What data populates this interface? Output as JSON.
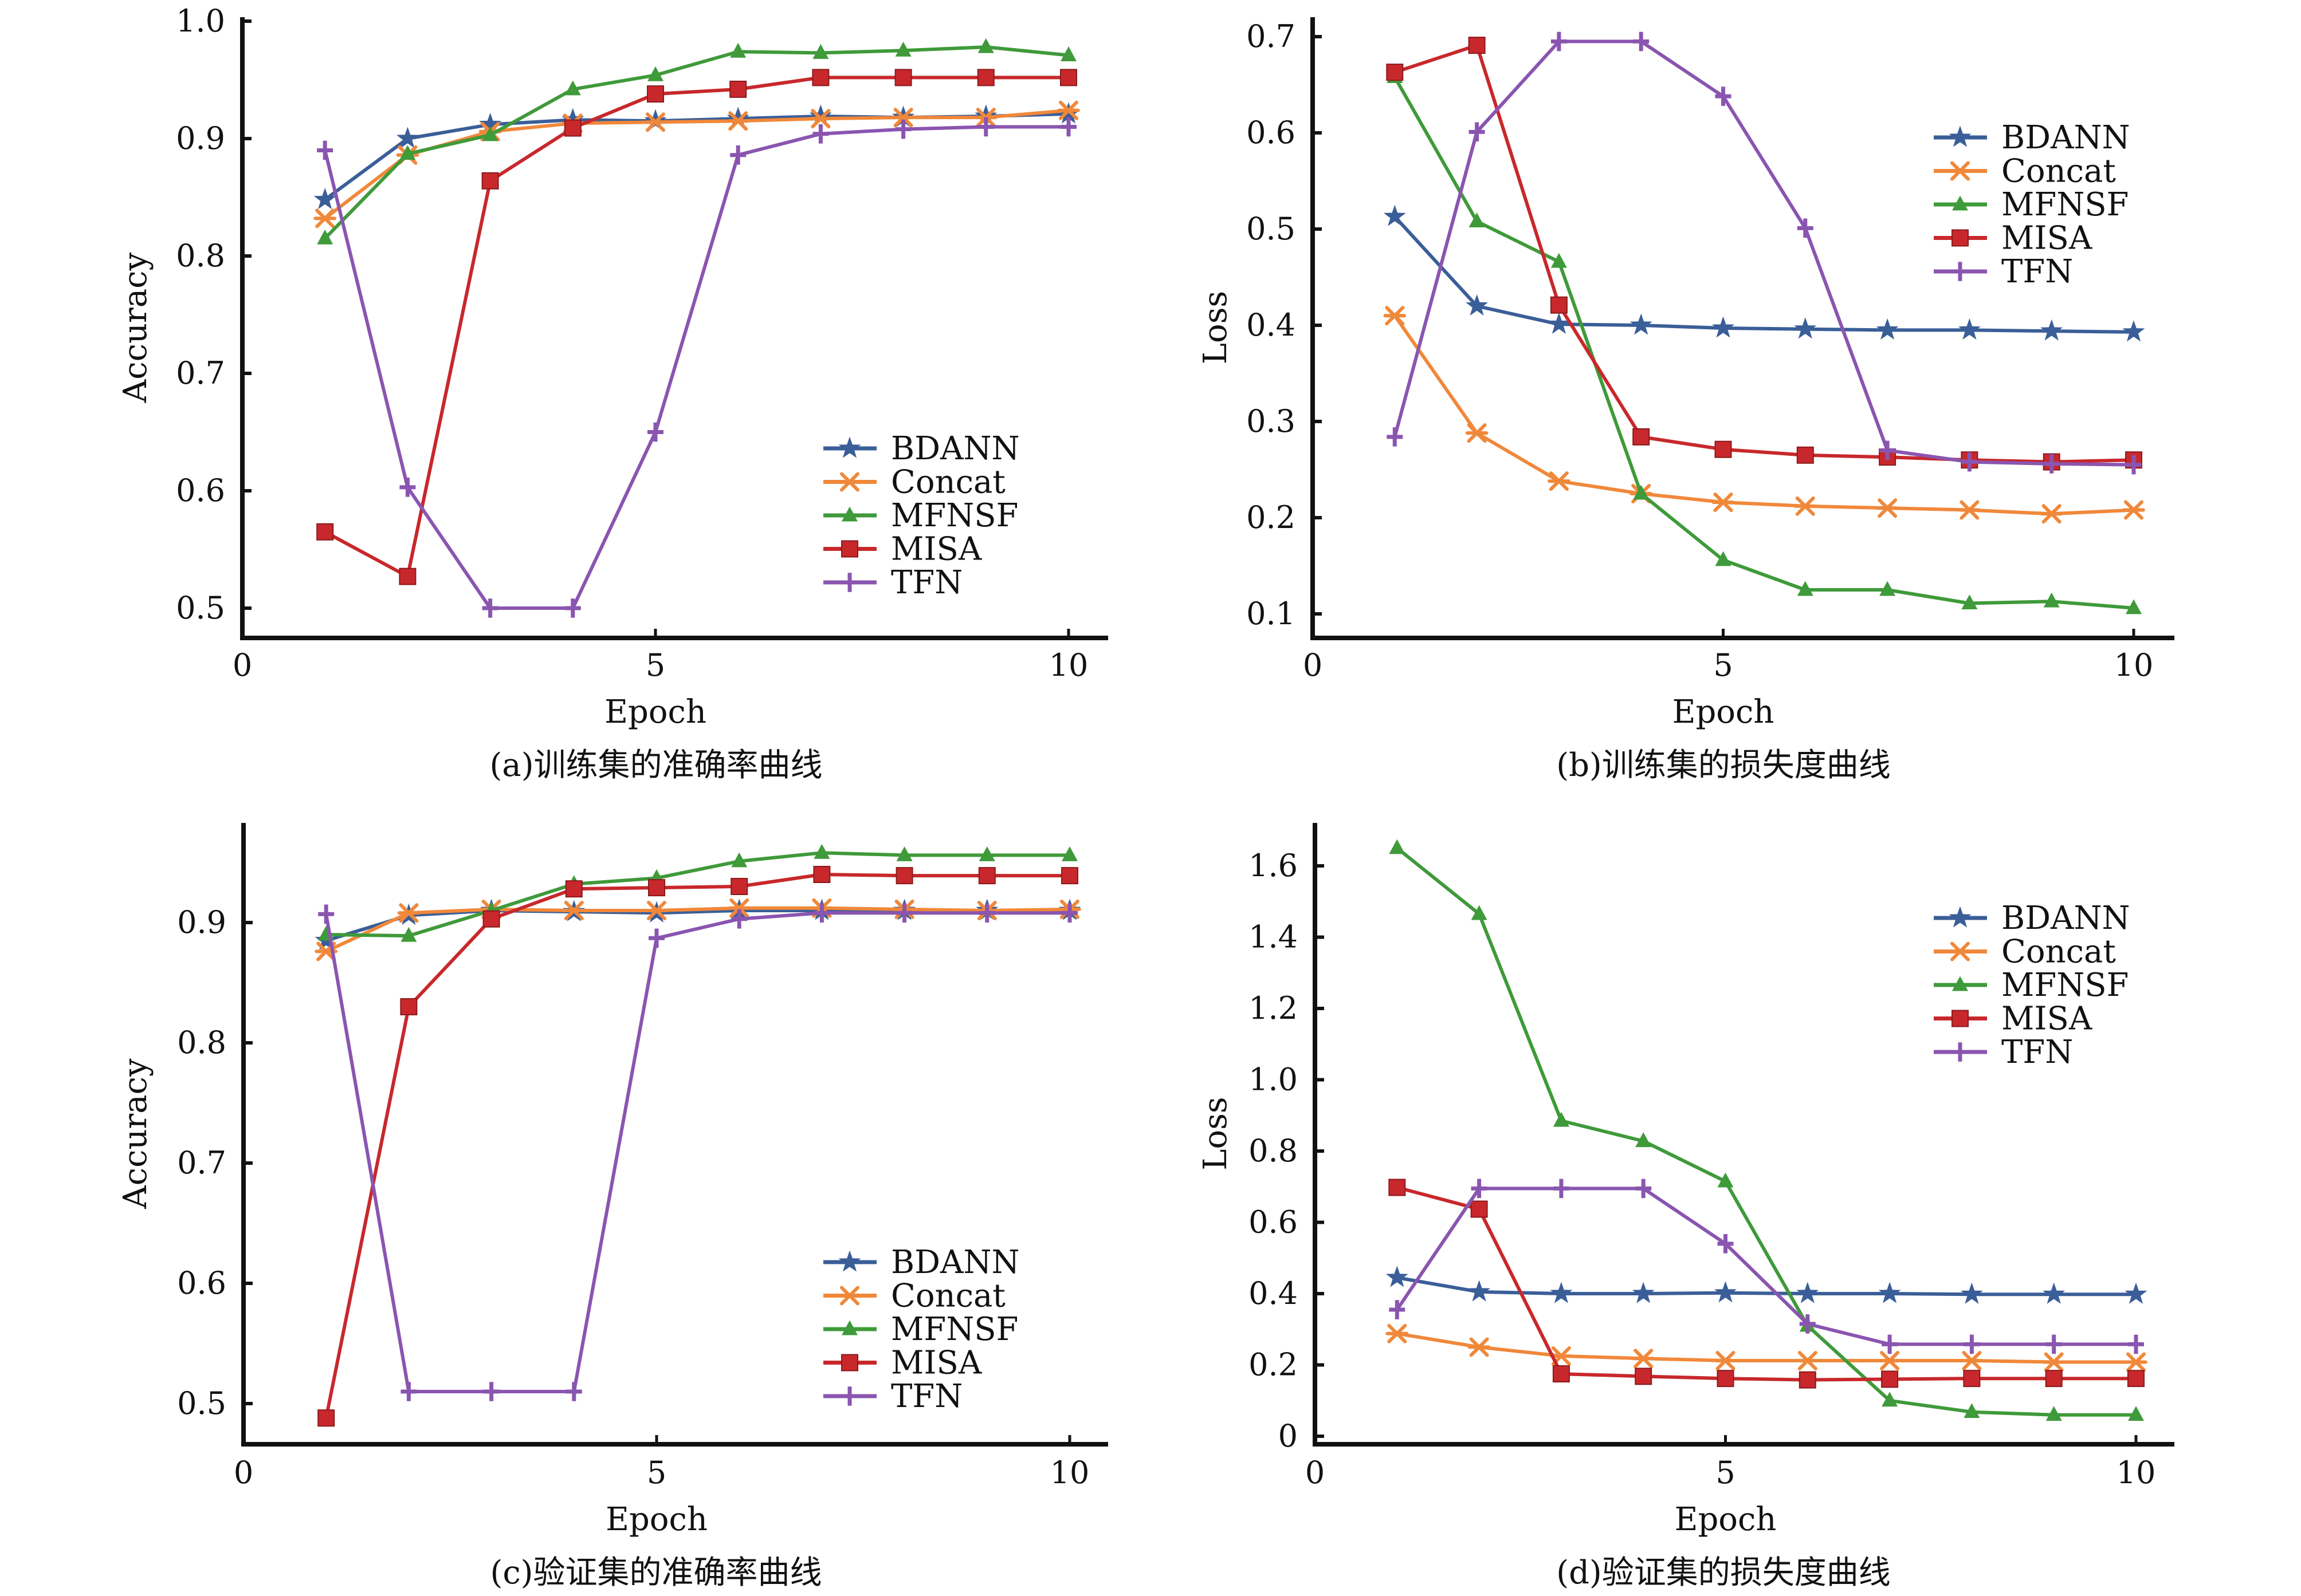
{
  "figure": {
    "series_styles": [
      {
        "name": "BDANN",
        "color": "#3a5e98",
        "marker": "star"
      },
      {
        "name": "Concat",
        "color": "#f0883a",
        "marker": "x"
      },
      {
        "name": "MFNSF",
        "color": "#3f9a3a",
        "marker": "triangle"
      },
      {
        "name": "MISA",
        "color": "#c8282c",
        "marker": "square"
      },
      {
        "name": "TFN",
        "color": "#8a55b0",
        "marker": "plus"
      }
    ]
  },
  "chart_data": [
    {
      "id": "a",
      "type": "line",
      "title": "(a)训练集的准确率曲线",
      "xlabel": "Epoch",
      "ylabel": "Accuracy",
      "xlim": [
        0,
        10.5
      ],
      "ylim": [
        0.47,
        1.0
      ],
      "xticks": [
        0,
        5,
        10
      ],
      "xtick_labels": [
        "0",
        "5",
        "10"
      ],
      "yticks": [
        0.5,
        0.6,
        0.7,
        0.8,
        0.9,
        1.0
      ],
      "ytick_labels": [
        "0.5",
        "0.6",
        "0.7",
        "0.8",
        "0.9",
        "1.0"
      ],
      "legend_position": "lower-right",
      "grid": false,
      "x": [
        1,
        2,
        3,
        4,
        5,
        6,
        7,
        8,
        9,
        10
      ],
      "series": [
        {
          "name": "BDANN",
          "values": [
            0.848,
            0.9,
            0.912,
            0.916,
            0.915,
            0.917,
            0.919,
            0.918,
            0.919,
            0.921
          ]
        },
        {
          "name": "Concat",
          "values": [
            0.832,
            0.886,
            0.906,
            0.913,
            0.914,
            0.915,
            0.917,
            0.918,
            0.918,
            0.924
          ]
        },
        {
          "name": "MFNSF",
          "values": [
            0.815,
            0.887,
            0.903,
            0.942,
            0.954,
            0.974,
            0.973,
            0.975,
            0.978,
            0.971
          ]
        },
        {
          "name": "MISA",
          "values": [
            0.565,
            0.527,
            0.864,
            0.909,
            0.938,
            0.942,
            0.952,
            0.952,
            0.952,
            0.952
          ]
        },
        {
          "name": "TFN",
          "values": [
            0.89,
            0.603,
            0.5,
            0.5,
            0.65,
            0.886,
            0.904,
            0.908,
            0.91,
            0.91
          ]
        }
      ]
    },
    {
      "id": "b",
      "type": "line",
      "title": "(b)训练集的损失度曲线",
      "xlabel": "Epoch",
      "ylabel": "Loss",
      "xlim": [
        0,
        10.5
      ],
      "ylim": [
        0.075,
        0.72
      ],
      "xticks": [
        0,
        5,
        10
      ],
      "xtick_labels": [
        "0",
        "5",
        "10"
      ],
      "yticks": [
        0.1,
        0.2,
        0.3,
        0.4,
        0.5,
        0.6,
        0.7
      ],
      "ytick_labels": [
        "0.1",
        "0.2",
        "0.3",
        "0.4",
        "0.5",
        "0.6",
        "0.7"
      ],
      "legend_position": "upper-right",
      "grid": false,
      "x": [
        1,
        2,
        3,
        4,
        5,
        6,
        7,
        8,
        9,
        10
      ],
      "series": [
        {
          "name": "BDANN",
          "values": [
            0.513,
            0.42,
            0.401,
            0.4,
            0.397,
            0.396,
            0.395,
            0.395,
            0.394,
            0.393
          ]
        },
        {
          "name": "Concat",
          "values": [
            0.41,
            0.288,
            0.238,
            0.225,
            0.216,
            0.212,
            0.21,
            0.208,
            0.204,
            0.208
          ]
        },
        {
          "name": "MFNSF",
          "values": [
            0.658,
            0.508,
            0.466,
            0.225,
            0.156,
            0.125,
            0.125,
            0.111,
            0.113,
            0.106
          ]
        },
        {
          "name": "MISA",
          "values": [
            0.663,
            0.691,
            0.421,
            0.284,
            0.271,
            0.265,
            0.263,
            0.26,
            0.258,
            0.26
          ]
        },
        {
          "name": "TFN",
          "values": [
            0.284,
            0.601,
            0.695,
            0.695,
            0.638,
            0.501,
            0.27,
            0.258,
            0.256,
            0.255
          ]
        }
      ]
    },
    {
      "id": "c",
      "type": "line",
      "title": "(c)验证集的准确率曲线",
      "xlabel": "Epoch",
      "ylabel": "Accuracy",
      "xlim": [
        0,
        10.5
      ],
      "ylim": [
        0.47,
        0.98
      ],
      "xticks": [
        0,
        5,
        10
      ],
      "xtick_labels": [
        "0",
        "5",
        "10"
      ],
      "yticks": [
        0.5,
        0.6,
        0.7,
        0.8,
        0.9
      ],
      "ytick_labels": [
        "0.5",
        "0.6",
        "0.7",
        "0.8",
        "0.9"
      ],
      "legend_position": "lower-right",
      "grid": false,
      "x": [
        1,
        2,
        3,
        4,
        5,
        6,
        7,
        8,
        9,
        10
      ],
      "series": [
        {
          "name": "BDANN",
          "values": [
            0.885,
            0.906,
            0.91,
            0.909,
            0.908,
            0.91,
            0.91,
            0.91,
            0.91,
            0.91
          ]
        },
        {
          "name": "Concat",
          "values": [
            0.876,
            0.908,
            0.911,
            0.91,
            0.91,
            0.912,
            0.912,
            0.911,
            0.91,
            0.911
          ]
        },
        {
          "name": "MFNSF",
          "values": [
            0.89,
            0.889,
            0.91,
            0.932,
            0.937,
            0.951,
            0.958,
            0.956,
            0.956,
            0.956
          ]
        },
        {
          "name": "MISA",
          "values": [
            0.488,
            0.83,
            0.903,
            0.928,
            0.929,
            0.93,
            0.94,
            0.939,
            0.939,
            0.939
          ]
        },
        {
          "name": "TFN",
          "values": [
            0.907,
            0.51,
            0.51,
            0.51,
            0.887,
            0.903,
            0.908,
            0.908,
            0.908,
            0.908
          ]
        }
      ]
    },
    {
      "id": "d",
      "type": "line",
      "title": "(d)验证集的损失度曲线",
      "xlabel": "Epoch",
      "ylabel": "Loss",
      "xlim": [
        0,
        10.5
      ],
      "ylim": [
        -0.02,
        1.72
      ],
      "xticks": [
        0,
        5,
        10
      ],
      "xtick_labels": [
        "0",
        "5",
        "10"
      ],
      "yticks": [
        0,
        0.2,
        0.4,
        0.6,
        0.8,
        1.0,
        1.2,
        1.4,
        1.6
      ],
      "ytick_labels": [
        "0",
        "0.2",
        "0.4",
        "0.6",
        "0.8",
        "1.0",
        "1.2",
        "1.4",
        "1.6"
      ],
      "legend_position": "upper-right",
      "grid": false,
      "x": [
        1,
        2,
        3,
        4,
        5,
        6,
        7,
        8,
        9,
        10
      ],
      "series": [
        {
          "name": "BDANN",
          "values": [
            0.445,
            0.405,
            0.4,
            0.4,
            0.402,
            0.4,
            0.4,
            0.398,
            0.398,
            0.398
          ]
        },
        {
          "name": "Concat",
          "values": [
            0.288,
            0.25,
            0.225,
            0.218,
            0.212,
            0.212,
            0.212,
            0.212,
            0.208,
            0.208
          ]
        },
        {
          "name": "MFNSF",
          "values": [
            1.65,
            1.465,
            0.885,
            0.828,
            0.715,
            0.31,
            0.1,
            0.068,
            0.06,
            0.06
          ]
        },
        {
          "name": "MISA",
          "values": [
            0.698,
            0.637,
            0.175,
            0.168,
            0.162,
            0.158,
            0.16,
            0.162,
            0.162,
            0.162
          ]
        },
        {
          "name": "TFN",
          "values": [
            0.355,
            0.695,
            0.695,
            0.695,
            0.54,
            0.315,
            0.258,
            0.258,
            0.258,
            0.258
          ]
        }
      ]
    }
  ]
}
